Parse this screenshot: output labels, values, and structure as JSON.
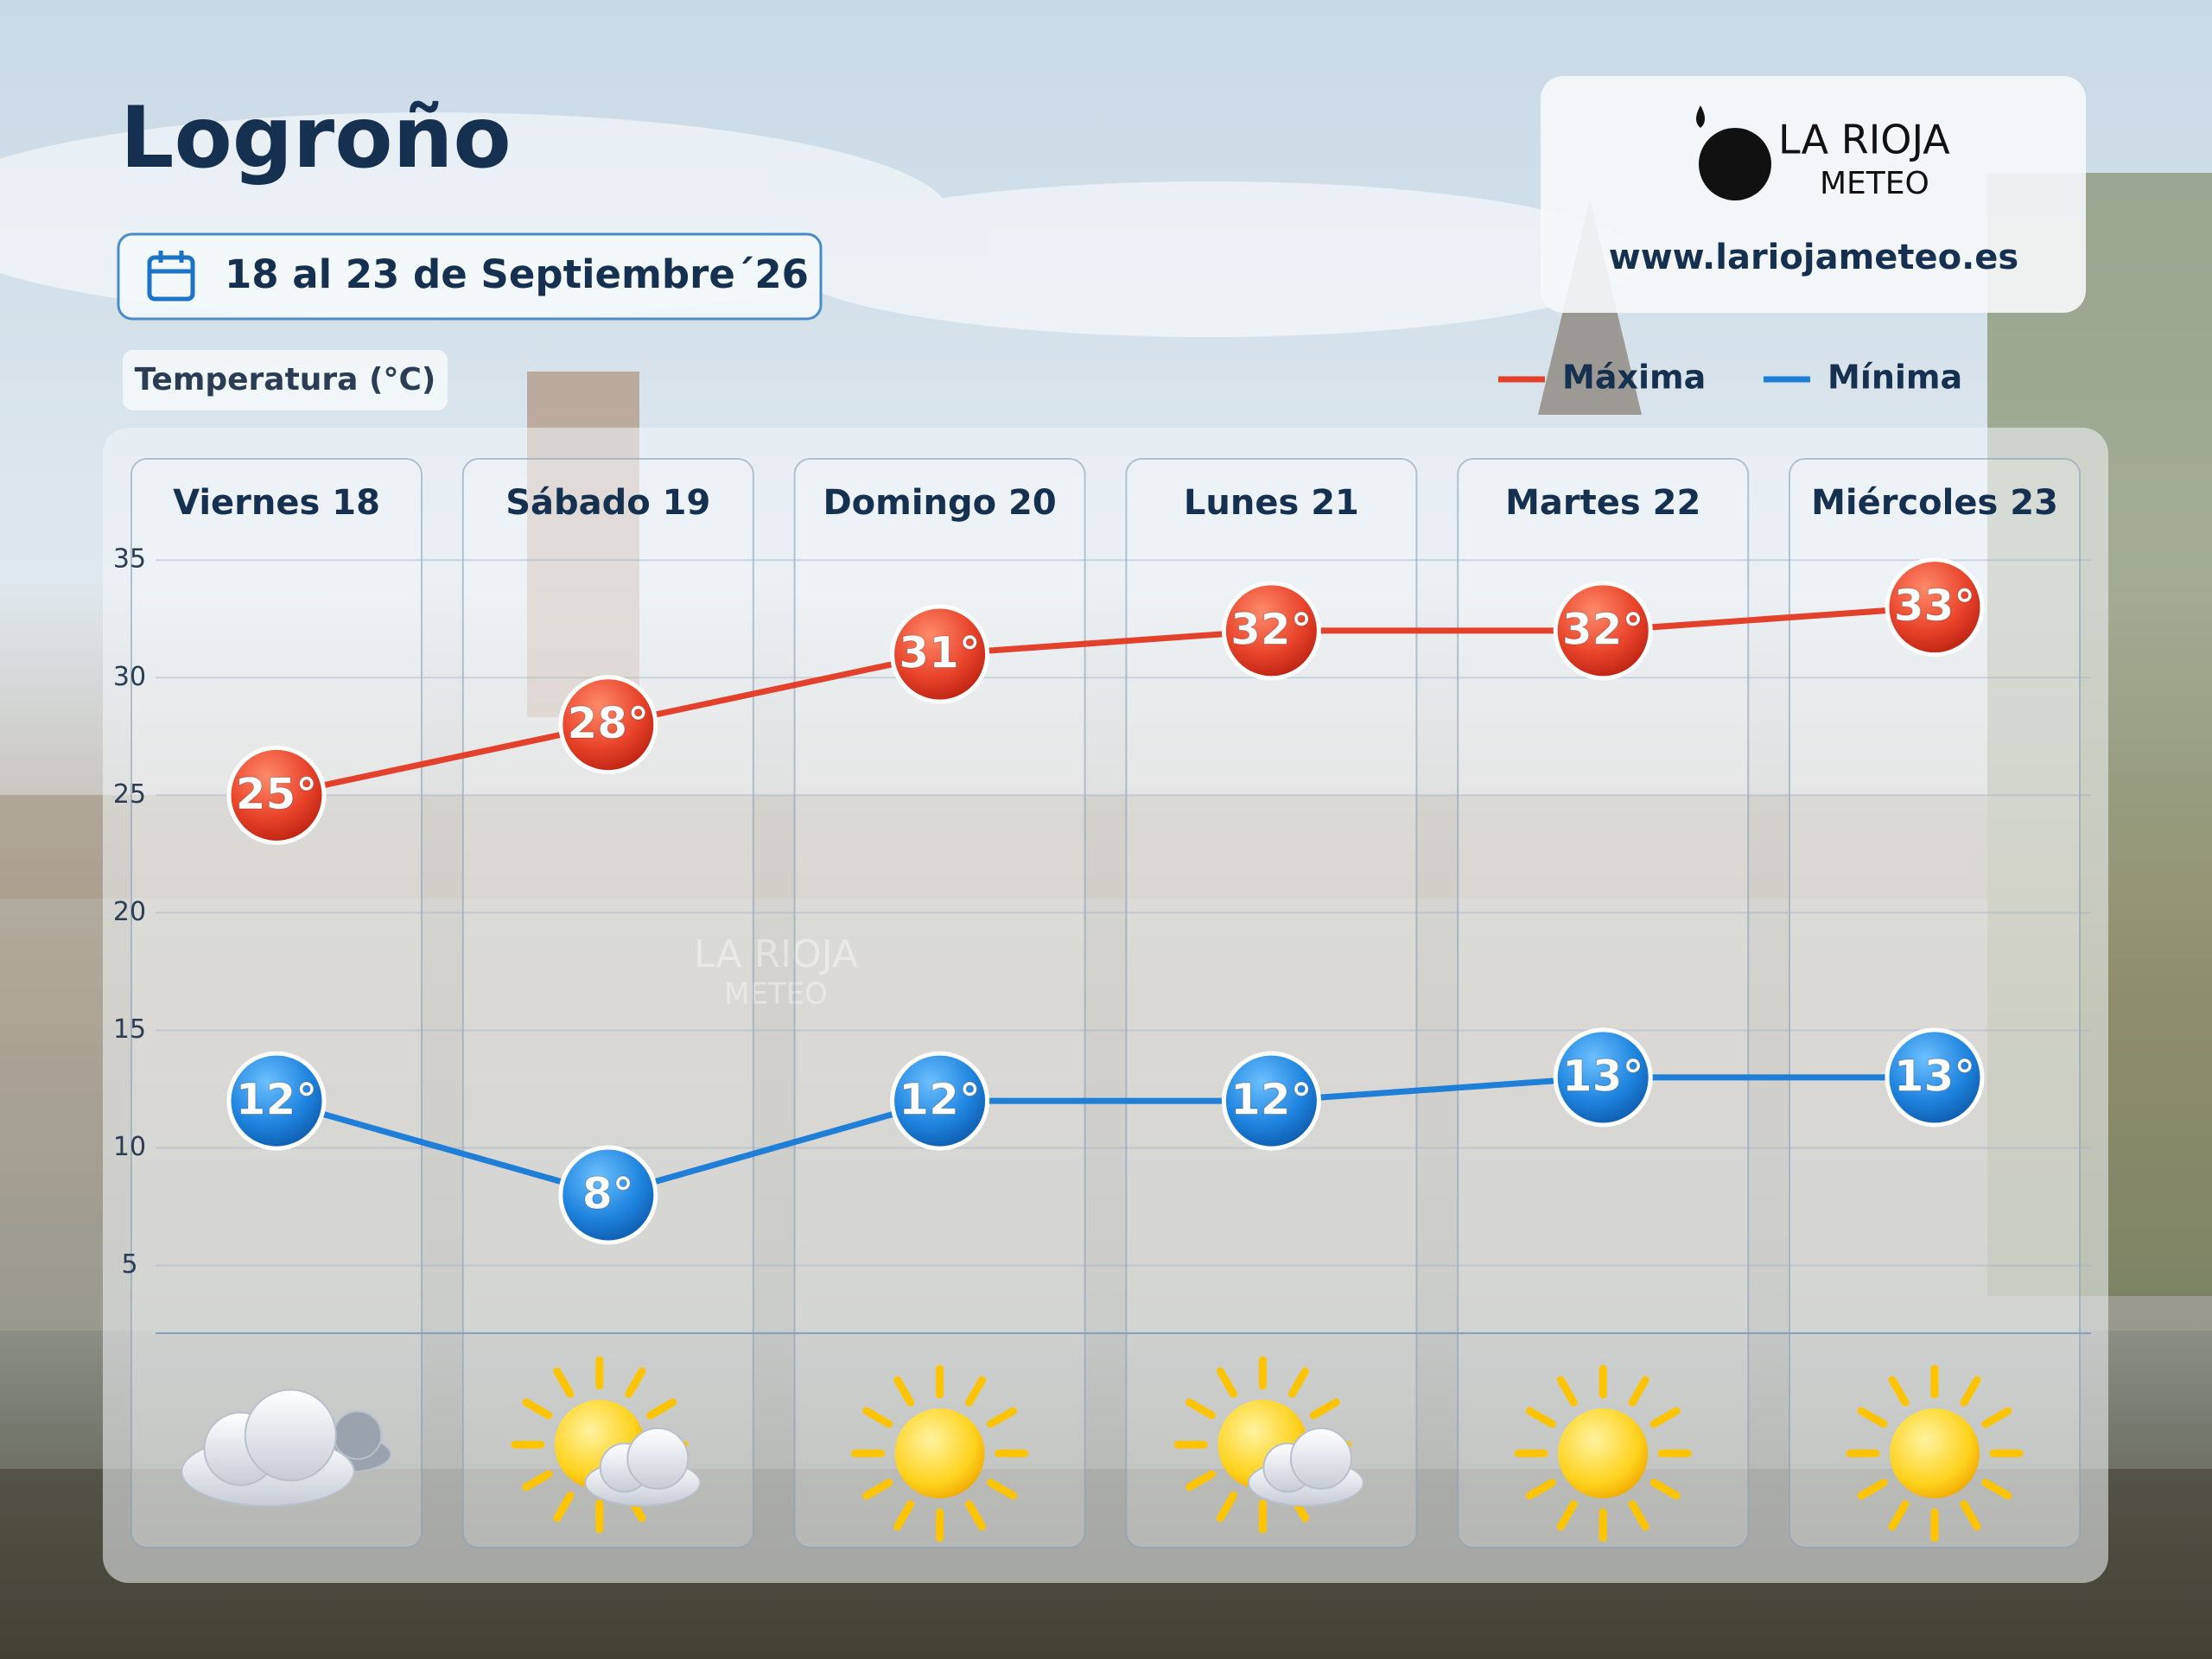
{
  "header": {
    "title": "Logroño",
    "dates": "18 al 23 de Septiembre´26"
  },
  "logo": {
    "line1": "LA RIOJA",
    "line2": "METEO",
    "url": "www.lariojameteo.es"
  },
  "chart_data": {
    "type": "line",
    "y_label": "Temperatura (°C)",
    "categories": [
      "Viernes 18",
      "Sábado 19",
      "Domingo 20",
      "Lunes 21",
      "Martes 22",
      "Miércoles 23"
    ],
    "series": [
      {
        "name": "Máxima",
        "color": "#e2412b",
        "values": [
          25,
          28,
          31,
          32,
          32,
          33
        ],
        "value_labels": [
          "25°",
          "28°",
          "31°",
          "32°",
          "32°",
          "33°"
        ]
      },
      {
        "name": "Mínima",
        "color": "#1f7fd6",
        "values": [
          12,
          8,
          12,
          12,
          13,
          13
        ],
        "value_labels": [
          "12°",
          "8°",
          "12°",
          "12°",
          "13°",
          "13°"
        ]
      }
    ],
    "ylim": [
      3,
      36
    ],
    "yticks": [
      5,
      10,
      15,
      20,
      25,
      30,
      35
    ],
    "grid": true,
    "legend": "top-right"
  }
}
